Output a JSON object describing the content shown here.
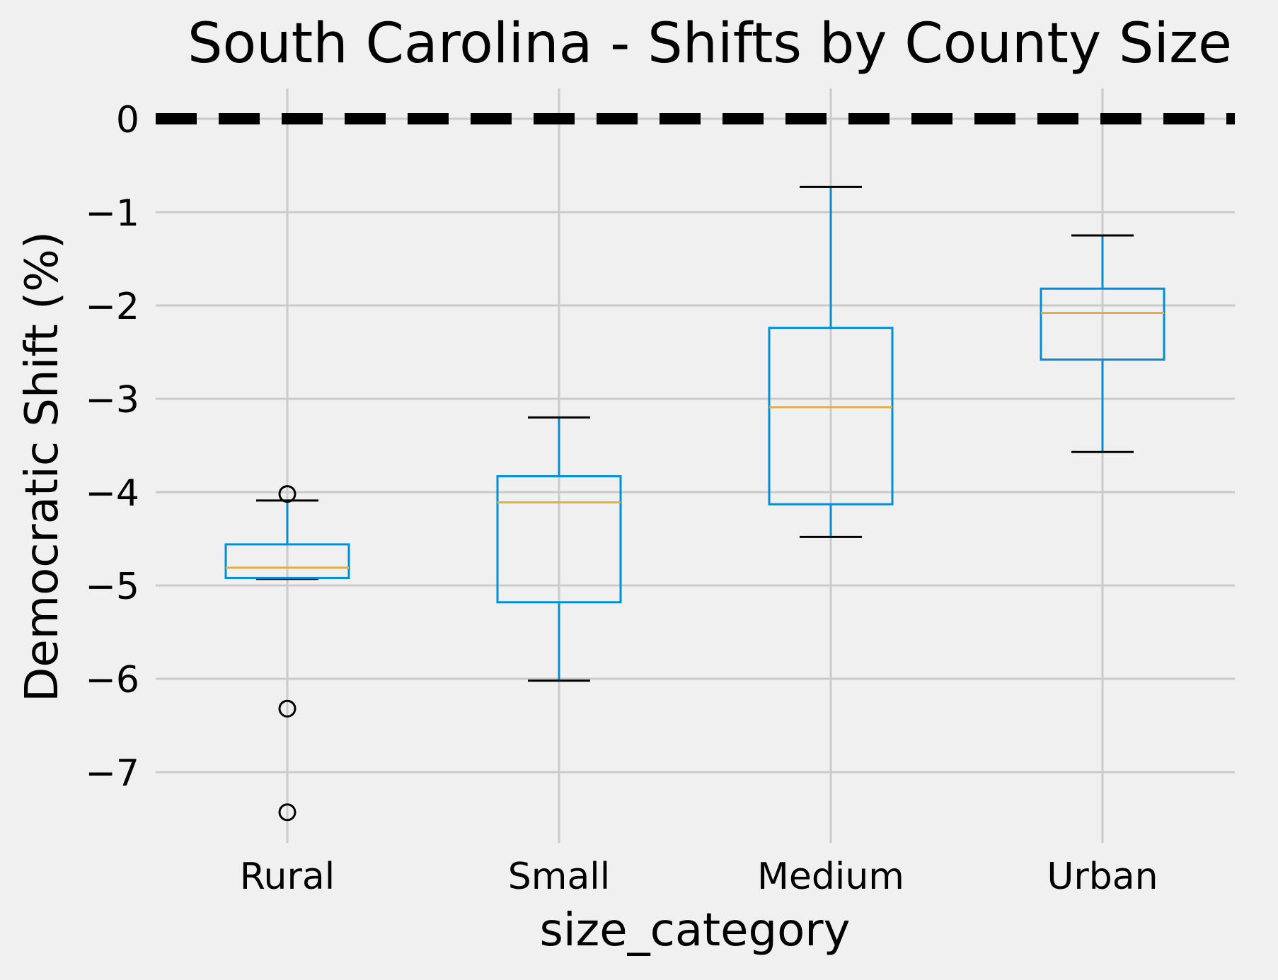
{
  "chart_data": {
    "type": "box",
    "title": "South Carolina - Shifts by County Size",
    "xlabel": "size_category",
    "ylabel": "Democratic Shift (%)",
    "ylim": [
      -7.75,
      0.3
    ],
    "yticks": [
      0,
      -1,
      -2,
      -3,
      -4,
      -5,
      -6,
      -7
    ],
    "ytick_labels": [
      "0",
      "−1",
      "−2",
      "−3",
      "−4",
      "−5",
      "−6",
      "−7"
    ],
    "grid": true,
    "reference_line": {
      "y": 0,
      "style": "dashed",
      "color": "#000000"
    },
    "categories": [
      "Rural",
      "Small",
      "Medium",
      "Urban"
    ],
    "boxes": [
      {
        "category": "Rural",
        "whisker_low": -4.93,
        "q1": -4.92,
        "median": -4.81,
        "q3": -4.56,
        "whisker_high": -4.09,
        "outliers": [
          -4.02,
          -6.32,
          -7.43
        ]
      },
      {
        "category": "Small",
        "whisker_low": -6.02,
        "q1": -5.18,
        "median": -4.11,
        "q3": -3.83,
        "whisker_high": -3.2,
        "outliers": []
      },
      {
        "category": "Medium",
        "whisker_low": -4.48,
        "q1": -4.13,
        "median": -3.09,
        "q3": -2.24,
        "whisker_high": -0.73,
        "outliers": []
      },
      {
        "category": "Urban",
        "whisker_low": -3.57,
        "q1": -2.58,
        "median": -2.08,
        "q3": -1.82,
        "whisker_high": -1.25,
        "outliers": []
      }
    ]
  },
  "colors": {
    "background": "#f0f0f0",
    "grid": "#cbcbcb",
    "box": "#008fd5",
    "median": "#e5ae38",
    "whisker_cap": "#000000",
    "outlier": "#000000",
    "reference_line": "#000000"
  }
}
